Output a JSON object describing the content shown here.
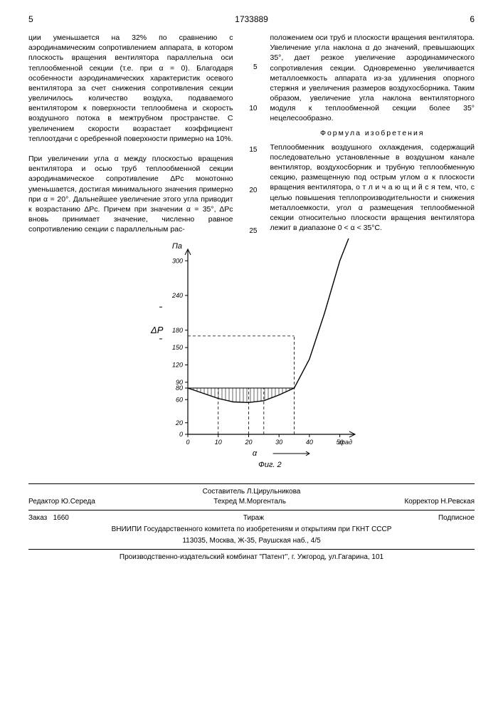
{
  "header": {
    "page_left": "5",
    "doc_number": "1733889",
    "page_right": "6"
  },
  "line_numbers": [
    "5",
    "10",
    "15",
    "20",
    "25"
  ],
  "left_column": "ции уменьшается на 32% по сравнению с аэродинамическим сопротивлением аппарата, в котором плоскость вращения вентилятора параллельна оси теплообменной секции (т.е. при α = 0). Благодаря особенности аэродинамических характеристик осевого вентилятора за счет снижения сопротивления секции увеличилось количество воздуха, подаваемого вентилятором к поверхности теплообмена и скорость воздушного потока в межтрубном пространстве. С увеличением скорости возрастает коэффициент теплоотдачи с оребренной поверхности примерно на 10%.\n\nПри увеличении угла α между плоскостью вращения вентилятора и осью труб теплообменной секции аэродинамическое сопротивление ΔPс монотонно уменьшается, достигая минимального значения примерно при α = 20°. Дальнейшее увеличение этого угла приводит к возрастанию ΔPс. Причем при значении α = 35°, ΔPс вновь принимает значение, численно равное сопротивлению секции с параллельным рас-",
  "right_column_top": "положением оси труб и плоскости вращения вентилятора. Увеличение угла наклона α до значений, превышающих 35°, дает резкое увеличение аэродинамического сопротивления секции. Одновременно увеличивается металлоемкость аппарата из-за удлинения опорного стержня и увеличения размеров воздухосборника. Таким образом, увеличение угла наклона вентиляторного модуля к теплообменной секции более 35° нецелесообразно.",
  "formula_heading": "Формула изобретения",
  "right_column_formula": "Теплообменник воздушного охлаждения, содержащий последовательно установленные в воздушном канале вентилятор, воздухосборник и трубную теплообменную секцию, размещенную под острым углом α к плоскости вращения вентилятора, о т л и ч а ю щ и й с я  тем, что, с целью повышения теплопроизводительности и снижения металлоемкости, угол α размещения теплообменной секции относительно плоскости вращения вентилятора лежит в диапазоне 0 < α < 35°С.",
  "chart": {
    "type": "line",
    "y_unit": "Па",
    "y_label": "ΔP",
    "x_label": "α",
    "x_label_sub": "град",
    "caption": "Фиг. 2",
    "ylim": [
      0,
      320
    ],
    "xlim": [
      0,
      55
    ],
    "y_ticks": [
      0,
      20,
      60,
      80,
      90,
      120,
      150,
      180,
      240,
      300
    ],
    "x_ticks": [
      0,
      10,
      20,
      30,
      40,
      50
    ],
    "curve": [
      {
        "x": 0,
        "y": 80
      },
      {
        "x": 10,
        "y": 62
      },
      {
        "x": 15,
        "y": 56
      },
      {
        "x": 20,
        "y": 55
      },
      {
        "x": 25,
        "y": 58
      },
      {
        "x": 30,
        "y": 68
      },
      {
        "x": 35,
        "y": 80
      },
      {
        "x": 40,
        "y": 130
      },
      {
        "x": 45,
        "y": 210
      },
      {
        "x": 50,
        "y": 300
      },
      {
        "x": 53,
        "y": 340
      }
    ],
    "hatched_region": {
      "x_start": 0,
      "x_end": 35,
      "y": 80
    },
    "dashed_v": [
      10,
      20,
      25,
      35
    ],
    "dashed_h": [
      80,
      170
    ],
    "dashed_v_tall": 35,
    "colors": {
      "axis": "#000000",
      "curve": "#000000",
      "dashed": "#000000",
      "background": "#ffffff"
    },
    "line_width": 1.4,
    "font_size_ticks": 9,
    "font_size_labels": 11
  },
  "footer": {
    "compiler_label": "Составитель",
    "compiler": "Л.Цирульникова",
    "editor_label": "Редактор",
    "editor": "Ю.Середа",
    "techred_label": "Техред",
    "techred": "М.Моргенталь",
    "corrector_label": "Корректор",
    "corrector": "Н.Ревская",
    "order_label": "Заказ",
    "order": "1660",
    "tirazh": "Тираж",
    "subscribe": "Подписное",
    "org1": "ВНИИПИ Государственного комитета по изобретениям и открытиям при ГКНТ СССР",
    "org2": "113035, Москва, Ж-35, Раушская наб., 4/5",
    "org3": "Производственно-издательский комбинат \"Патент\", г. Ужгород, ул.Гагарина, 101"
  }
}
